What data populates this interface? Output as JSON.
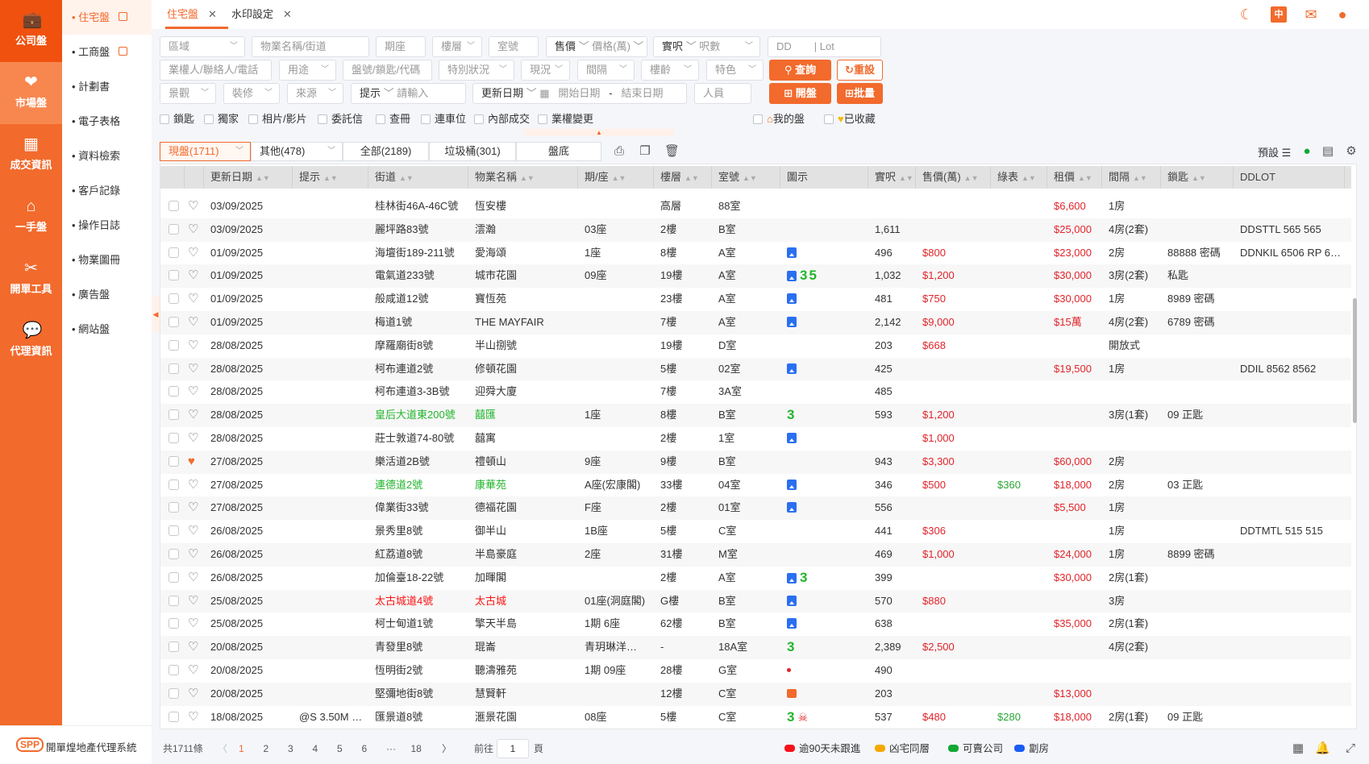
{
  "nav_primary": [
    {
      "label": "公司盤",
      "icon": "briefcase-icon"
    },
    {
      "label": "市場盤",
      "icon": "handshake-icon",
      "active": true
    },
    {
      "label": "成交資訊",
      "icon": "chart-icon"
    },
    {
      "label": "一手盤",
      "icon": "home-icon"
    },
    {
      "label": "開單工具",
      "icon": "tools-icon"
    },
    {
      "label": "代理資訊",
      "icon": "chat-icon"
    }
  ],
  "brand": {
    "logo": "SPP",
    "name": "開單煌地產代理系統"
  },
  "nav_secondary": [
    {
      "label": "住宅盤",
      "active": true,
      "popout": true
    },
    {
      "label": "工商盤",
      "popout": true
    },
    {
      "label": "計劃書"
    },
    {
      "label": "電子表格"
    },
    {
      "label": "資料檢索"
    },
    {
      "label": "客戶記錄"
    },
    {
      "label": "操作日誌"
    },
    {
      "label": "物業圖冊"
    },
    {
      "label": "廣告盤"
    },
    {
      "label": "網站盤"
    }
  ],
  "tabs": [
    {
      "label": "住宅盤",
      "active": true
    },
    {
      "label": "水印設定"
    }
  ],
  "top_icons": [
    "night-mode-icon",
    "language-icon",
    "mail-icon",
    "user-icon"
  ],
  "filters": {
    "district": "區域",
    "property": "物業名稱/街道",
    "block": "期座",
    "floor": "樓層",
    "room": "室號",
    "price_type": "售價",
    "price_unit": "價格(萬)",
    "area_type": "實呎",
    "area_unit": "呎數",
    "dd": "DD",
    "lot": "Lot",
    "owner": "業權人/聯絡人/電話",
    "usage": "用途",
    "code": "盤號/鎖匙/代碼",
    "special": "特別狀況",
    "status": "現況",
    "layout": "間隔",
    "age": "樓齡",
    "feature": "特色",
    "search": "查詢",
    "reset": "重設",
    "view": "景觀",
    "decor": "裝修",
    "source": "來源",
    "hint_type": "提示",
    "hint_input": "請輸入",
    "date_type": "更新日期",
    "start_date": "開始日期",
    "end_date": "結束日期",
    "staff": "人員",
    "open": "開盤",
    "batch": "批量",
    "checkboxes": [
      "鎖匙",
      "獨家",
      "相片/影片",
      "委託信",
      "查冊",
      "連車位",
      "內部成交",
      "業權變更"
    ],
    "mine": "我的盤",
    "saved": "已收藏"
  },
  "segments": [
    {
      "label": "現盤(1711)",
      "active": true,
      "dropdown": true
    },
    {
      "label": "其他(478)",
      "dropdown": true
    },
    {
      "label": "全部(2189)"
    },
    {
      "label": "垃圾桶(301)"
    },
    {
      "label": "盤底"
    }
  ],
  "toolbar": {
    "preset": "預設"
  },
  "columns": [
    "",
    "",
    "更新日期",
    "提示",
    "街道",
    "物業名稱",
    "期/座",
    "樓層",
    "室號",
    "圖示",
    "實呎",
    "售價(萬)",
    "綠表",
    "租價",
    "間隔",
    "鎖匙",
    "DDLOT"
  ],
  "rows": [
    {
      "date": "03/09/2025",
      "hint": "",
      "street": "桂林街46A-46C號",
      "name": "恆安樓",
      "block": "",
      "floor": "高層",
      "room": "88室",
      "icons": [],
      "area": "",
      "price": "",
      "green": "",
      "rent": "$6,600",
      "layout": "1房",
      "key": "",
      "ddlot": ""
    },
    {
      "date": "03/09/2025",
      "hint": "",
      "street": "麗坪路83號",
      "name": "澐瀚",
      "block": "03座",
      "floor": "2樓",
      "room": "B室",
      "icons": [],
      "area": "1,611",
      "price": "",
      "green": "",
      "rent": "$25,000",
      "layout": "4房(2套)",
      "key": "",
      "ddlot": "DDSTTL 565 565"
    },
    {
      "date": "01/09/2025",
      "hint": "",
      "street": "海壇街189-211號",
      "name": "愛海頌",
      "block": "1座",
      "floor": "8樓",
      "room": "A室",
      "icons": [
        "photo"
      ],
      "area": "496",
      "price": "$800",
      "green": "",
      "rent": "$23,000",
      "layout": "2房",
      "key": "88888 密碼",
      "ddlot": "DDNKIL 6506 RP 65…"
    },
    {
      "date": "01/09/2025",
      "hint": "",
      "street": "電氣道233號",
      "name": "城市花園",
      "block": "09座",
      "floor": "19樓",
      "room": "A室",
      "icons": [
        "photo",
        "35"
      ],
      "area": "1,032",
      "price": "$1,200",
      "green": "",
      "rent": "$30,000",
      "layout": "3房(2套)",
      "key": "私匙",
      "ddlot": ""
    },
    {
      "date": "01/09/2025",
      "hint": "",
      "street": "般咸道12號",
      "name": "寶恆苑",
      "block": "",
      "floor": "23樓",
      "room": "A室",
      "icons": [
        "photo"
      ],
      "area": "481",
      "price": "$750",
      "green": "",
      "rent": "$30,000",
      "layout": "1房",
      "key": "8989 密碼",
      "ddlot": ""
    },
    {
      "date": "01/09/2025",
      "hint": "",
      "street": "梅道1號",
      "name": "THE MAYFAIR",
      "block": "",
      "floor": "7樓",
      "room": "A室",
      "icons": [
        "photo"
      ],
      "area": "2,142",
      "price": "$9,000",
      "green": "",
      "rent": "$15萬",
      "layout": "4房(2套)",
      "key": "6789 密碼",
      "ddlot": ""
    },
    {
      "date": "28/08/2025",
      "hint": "",
      "street": "摩羅廟街8號",
      "name": "半山捌號",
      "block": "",
      "floor": "19樓",
      "room": "D室",
      "icons": [],
      "area": "203",
      "price": "$668",
      "green": "",
      "rent": "",
      "layout": "開放式",
      "key": "",
      "ddlot": ""
    },
    {
      "date": "28/08/2025",
      "hint": "",
      "street": "柯布連道2號",
      "name": "修頓花園",
      "block": "",
      "floor": "5樓",
      "room": "02室",
      "icons": [
        "photo"
      ],
      "area": "425",
      "price": "",
      "green": "",
      "rent": "$19,500",
      "layout": "1房",
      "key": "",
      "ddlot": "DDIL 8562 8562"
    },
    {
      "date": "28/08/2025",
      "hint": "",
      "street": "柯布連道3-3B號",
      "name": "迎舜大廈",
      "block": "",
      "floor": "7樓",
      "room": "3A室",
      "icons": [],
      "area": "485",
      "price": "",
      "green": "",
      "rent": "",
      "layout": "",
      "key": "",
      "ddlot": ""
    },
    {
      "date": "28/08/2025",
      "hint": "",
      "street": "皇后大道東200號",
      "name": "囍匯",
      "tone": "green",
      "block": "1座",
      "floor": "8樓",
      "room": "B室",
      "icons": [
        "3"
      ],
      "area": "593",
      "price": "$1,200",
      "green": "",
      "rent": "",
      "layout": "3房(1套)",
      "key": "09 正匙",
      "ddlot": ""
    },
    {
      "date": "28/08/2025",
      "hint": "",
      "street": "莊士敦道74-80號",
      "name": "囍寓",
      "block": "",
      "floor": "2樓",
      "room": "1室",
      "icons": [
        "photo"
      ],
      "area": "",
      "price": "$1,000",
      "green": "",
      "rent": "",
      "layout": "",
      "key": "",
      "ddlot": ""
    },
    {
      "date": "27/08/2025",
      "fav": true,
      "hint": "",
      "street": "樂活道2B號",
      "name": "禮頓山",
      "block": "9座",
      "floor": "9樓",
      "room": "B室",
      "icons": [],
      "area": "943",
      "price": "$3,300",
      "green": "",
      "rent": "$60,000",
      "layout": "2房",
      "key": "",
      "ddlot": ""
    },
    {
      "date": "27/08/2025",
      "hint": "",
      "street": "連德道2號",
      "name": "康華苑",
      "tone": "green",
      "block": "A座(宏康閣)",
      "floor": "33樓",
      "room": "04室",
      "icons": [
        "photo"
      ],
      "area": "346",
      "price": "$500",
      "green": "$360",
      "rent": "$18,000",
      "layout": "2房",
      "key": "03 正匙",
      "ddlot": ""
    },
    {
      "date": "27/08/2025",
      "hint": "",
      "street": "偉業街33號",
      "name": "德福花園",
      "block": "F座",
      "floor": "2樓",
      "room": "01室",
      "icons": [
        "photo"
      ],
      "area": "556",
      "price": "",
      "green": "",
      "rent": "$5,500",
      "layout": "1房",
      "key": "",
      "ddlot": ""
    },
    {
      "date": "26/08/2025",
      "hint": "",
      "street": "景秀里8號",
      "name": "御半山",
      "block": "1B座",
      "floor": "5樓",
      "room": "C室",
      "icons": [],
      "area": "441",
      "price": "$306",
      "green": "",
      "rent": "",
      "layout": "1房",
      "key": "",
      "ddlot": "DDTMTL 515 515"
    },
    {
      "date": "26/08/2025",
      "hint": "",
      "street": "紅荔道8號",
      "name": "半島豪庭",
      "block": "2座",
      "floor": "31樓",
      "room": "M室",
      "icons": [],
      "area": "469",
      "price": "$1,000",
      "green": "",
      "rent": "$24,000",
      "layout": "1房",
      "key": "8899 密碼",
      "ddlot": ""
    },
    {
      "date": "26/08/2025",
      "hint": "",
      "street": "加倫臺18-22號",
      "name": "加暉閣",
      "block": "",
      "floor": "2樓",
      "room": "A室",
      "icons": [
        "photo",
        "3"
      ],
      "area": "399",
      "price": "",
      "green": "",
      "rent": "$30,000",
      "layout": "2房(1套)",
      "key": "",
      "ddlot": ""
    },
    {
      "date": "25/08/2025",
      "hint": "",
      "street": "太古城道4號",
      "name": "太古城",
      "tone": "red",
      "block": "01座(洞庭閣)",
      "floor": "G樓",
      "room": "B室",
      "icons": [
        "photo"
      ],
      "area": "570",
      "price": "$880",
      "green": "",
      "rent": "",
      "layout": "3房",
      "key": "",
      "ddlot": ""
    },
    {
      "date": "25/08/2025",
      "hint": "",
      "street": "柯士甸道1號",
      "name": "擎天半島",
      "block": "1期 6座",
      "floor": "62樓",
      "room": "B室",
      "icons": [
        "photo"
      ],
      "area": "638",
      "price": "",
      "green": "",
      "rent": "$35,000",
      "layout": "2房(1套)",
      "key": "",
      "ddlot": ""
    },
    {
      "date": "20/08/2025",
      "hint": "",
      "street": "青發里8號",
      "name": "琨崙",
      "block": "青玥琳洋…",
      "floor": "-",
      "room": "18A室",
      "icons": [
        "3"
      ],
      "area": "2,389",
      "price": "$2,500",
      "green": "",
      "rent": "",
      "layout": "4房(2套)",
      "key": "",
      "ddlot": ""
    },
    {
      "date": "20/08/2025",
      "hint": "",
      "street": "恆明街2號",
      "name": "聽濤雅苑",
      "block": "1期 09座",
      "floor": "28樓",
      "room": "G室",
      "icons": [
        "dot"
      ],
      "area": "490",
      "price": "",
      "green": "",
      "rent": "",
      "layout": "",
      "key": "",
      "ddlot": ""
    },
    {
      "date": "20/08/2025",
      "hint": "",
      "street": "堅彌地街8號",
      "name": "慧賢軒",
      "block": "",
      "floor": "12樓",
      "room": "C室",
      "icons": [
        "video"
      ],
      "area": "203",
      "price": "",
      "green": "",
      "rent": "$13,000",
      "layout": "",
      "key": "",
      "ddlot": ""
    },
    {
      "date": "18/08/2025",
      "hint": "@S 3.50M …",
      "street": "匯景道8號",
      "name": "滙景花園",
      "block": "08座",
      "floor": "5樓",
      "room": "C室",
      "icons": [
        "3",
        "skull"
      ],
      "area": "537",
      "price": "$480",
      "green": "$280",
      "rent": "$18,000",
      "layout": "2房(1套)",
      "key": "09 正匙",
      "ddlot": ""
    }
  ],
  "footer": {
    "total": "共1711條",
    "pages": [
      "1",
      "2",
      "3",
      "4",
      "5",
      "6",
      "···",
      "18"
    ],
    "current_page": "1",
    "goto_label": "前往",
    "goto_value": "1",
    "page_suffix": "頁",
    "legend": [
      {
        "label": "逾90天未跟進",
        "color": "#f5121a"
      },
      {
        "label": "凶宅同層",
        "color": "#f7a800"
      },
      {
        "label": "可賣公司",
        "color": "#12a832"
      },
      {
        "label": "劏房",
        "color": "#1a5cf2"
      }
    ]
  },
  "colors": {
    "accent": "#f26a2c",
    "price": "#e0242a",
    "green": "#2aa534",
    "photo": "#2a6ff0"
  }
}
